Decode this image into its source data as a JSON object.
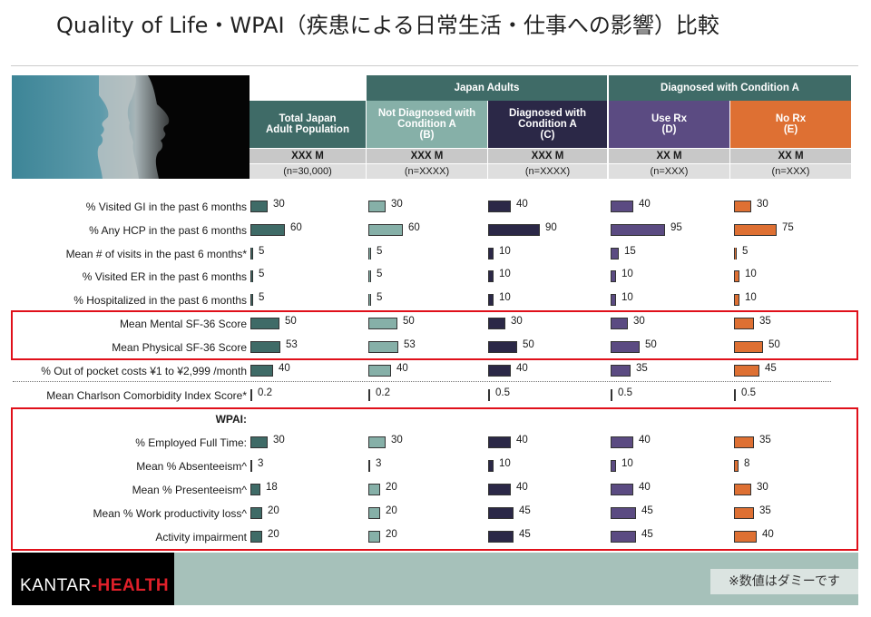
{
  "title": "Quality of Life・WPAI（疾患による日常生活・仕事への影響）比較",
  "header": {
    "group_japan": "Japan Adults",
    "group_diag": "Diagnosed with Condition A",
    "columns": [
      {
        "label": "Total Japan Adult Population",
        "letter": "",
        "size": "XXX M",
        "n": "(n=30,000)"
      },
      {
        "label": "Not Diagnosed with Condition A",
        "letter": "(B)",
        "size": "XXX M",
        "n": "(n=XXXX)"
      },
      {
        "label": "Diagnosed with Condition A",
        "letter": "(C)",
        "size": "XXX M",
        "n": "(n=XXXX)"
      },
      {
        "label": "Use Rx",
        "letter": "(D)",
        "size": "XX M",
        "n": "(n=XXX)"
      },
      {
        "label": "No Rx",
        "letter": "(E)",
        "size": "XX M",
        "n": "(n=XXX)"
      }
    ]
  },
  "colors": [
    "#3f6b67",
    "#86b0a8",
    "#2b2847",
    "#5b4b82",
    "#de7033"
  ],
  "wpai_label": "WPAI:",
  "chart_data": {
    "type": "bar",
    "orientation": "horizontal",
    "series": [
      {
        "name": "Total Japan Adult Population"
      },
      {
        "name": "Not Diagnosed with Condition A (B)"
      },
      {
        "name": "Diagnosed with Condition A (C)"
      },
      {
        "name": "Use Rx (D)"
      },
      {
        "name": "No Rx (E)"
      }
    ],
    "rows": [
      {
        "label": "% Visited GI in the past 6 months",
        "display": [
          "30",
          "30",
          "40",
          "40",
          "30"
        ],
        "values": [
          30,
          30,
          40,
          40,
          30
        ]
      },
      {
        "label": "% Any HCP in the past 6 months",
        "display": [
          "60",
          "60",
          "90",
          "95",
          "75"
        ],
        "values": [
          60,
          60,
          90,
          95,
          75
        ]
      },
      {
        "label": "Mean  # of visits in the past 6 months*",
        "display": [
          "5",
          "5",
          "10",
          "15",
          "5"
        ],
        "values": [
          5,
          5,
          10,
          15,
          5
        ]
      },
      {
        "label": "% Visited ER in the past 6 months",
        "display": [
          "5",
          "5",
          "10",
          "10",
          "10"
        ],
        "values": [
          5,
          5,
          10,
          10,
          10
        ]
      },
      {
        "label": "% Hospitalized in the past 6 months",
        "display": [
          "5",
          "5",
          "10",
          "10",
          "10"
        ],
        "values": [
          5,
          5,
          10,
          10,
          10
        ]
      },
      {
        "label": "Mean Mental SF-36 Score",
        "display": [
          "50",
          "50",
          "30",
          "30",
          "35"
        ],
        "values": [
          50,
          50,
          30,
          30,
          35
        ]
      },
      {
        "label": "Mean Physical SF-36 Score",
        "display": [
          "53",
          "53",
          "50",
          "50",
          "50"
        ],
        "values": [
          53,
          53,
          50,
          50,
          50
        ]
      },
      {
        "label": "% Out of pocket costs ¥1 to ¥2,999 /month",
        "display": [
          "40",
          "40",
          "40",
          "35",
          "45"
        ],
        "values": [
          40,
          40,
          40,
          35,
          45
        ]
      },
      {
        "label": "Mean Charlson Comorbidity Index Score*",
        "display": [
          "0.2",
          "0.2",
          "0.5",
          "0.5",
          "0.5"
        ],
        "values": [
          0.2,
          0.2,
          0.5,
          0.5,
          0.5
        ]
      },
      {
        "label": "% Employed Full Time:",
        "display": [
          "30",
          "30",
          "40",
          "40",
          "35"
        ],
        "values": [
          30,
          30,
          40,
          40,
          35
        ]
      },
      {
        "label": "Mean % Absenteeism^",
        "display": [
          "3",
          "3",
          "10",
          "10",
          "8"
        ],
        "values": [
          3,
          3,
          10,
          10,
          8
        ]
      },
      {
        "label": "Mean % Presenteeism^",
        "display": [
          "18",
          "20",
          "40",
          "40",
          "30"
        ],
        "values": [
          18,
          20,
          40,
          40,
          30
        ]
      },
      {
        "label": "Mean % Work productivity loss^",
        "display": [
          "20",
          "20",
          "45",
          "45",
          "35"
        ],
        "values": [
          20,
          20,
          45,
          45,
          35
        ]
      },
      {
        "label": "Activity  impairment",
        "display": [
          "20",
          "20",
          "45",
          "45",
          "40"
        ],
        "values": [
          20,
          20,
          45,
          45,
          40
        ]
      }
    ]
  },
  "footer": {
    "logo_left": "KANTAR",
    "logo_right": "HEALTH",
    "note": "※数値はダミーです"
  }
}
